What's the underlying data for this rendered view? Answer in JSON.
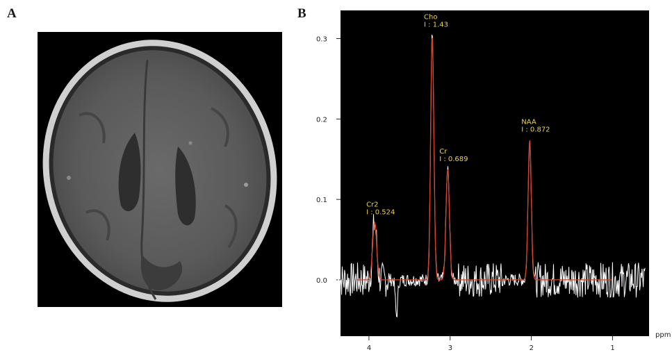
{
  "panels": {
    "a_label": "A",
    "b_label": "B"
  },
  "colors": {
    "plot_bg": "#000000",
    "raw_spectrum": "#ffffff",
    "fit_curve": "#d9402a",
    "peak_label": "#e6d35a"
  },
  "chart_data": {
    "type": "line",
    "title": "",
    "xlabel": "ppm",
    "ylabel": "",
    "x_reversed": true,
    "xlim": [
      4.35,
      0.55
    ],
    "ylim": [
      -0.07,
      0.335
    ],
    "xticks": [
      4,
      3,
      2,
      1
    ],
    "xtick_labels": [
      "4",
      "3",
      "2",
      "1"
    ],
    "yticks": [
      0.0,
      0.1,
      0.2,
      0.3
    ],
    "ytick_labels": [
      "0.0",
      "0.1",
      "0.2",
      "0.3"
    ],
    "grid": false,
    "peaks": [
      {
        "name": "Cr2",
        "integral_label": "I : 0.524",
        "ppm": 3.93,
        "height": 0.072,
        "width": 0.035
      },
      {
        "name": "Cho",
        "integral_label": "I : 1.43",
        "ppm": 3.22,
        "height": 0.305,
        "width": 0.028
      },
      {
        "name": "Cr",
        "integral_label": "I : 0.689",
        "ppm": 3.03,
        "height": 0.138,
        "width": 0.03
      },
      {
        "name": "NAA",
        "integral_label": "I : 0.872",
        "ppm": 2.02,
        "height": 0.175,
        "width": 0.028
      }
    ],
    "series": [
      {
        "name": "",
        "kind": "raw",
        "style": "white noisy trace"
      },
      {
        "name": "",
        "kind": "fit",
        "style": "red smooth fit"
      }
    ]
  }
}
